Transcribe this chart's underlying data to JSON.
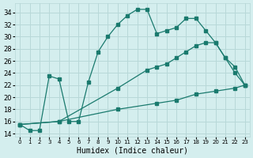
{
  "xlabel": "Humidex (Indice chaleur)",
  "bg_color": "#d4eeee",
  "grid_color": "#b8d8d8",
  "line_color": "#1a7a6e",
  "xlim": [
    -0.5,
    23.5
  ],
  "ylim": [
    13.5,
    35.5
  ],
  "yticks": [
    14,
    16,
    18,
    20,
    22,
    24,
    26,
    28,
    30,
    32,
    34
  ],
  "xticks": [
    0,
    1,
    2,
    3,
    4,
    5,
    6,
    7,
    8,
    9,
    10,
    11,
    12,
    13,
    14,
    15,
    16,
    17,
    18,
    19,
    20,
    21,
    22,
    23
  ],
  "line1_x": [
    0,
    1,
    2,
    3,
    4,
    5,
    6,
    7,
    8,
    9,
    10,
    11,
    12,
    13,
    14,
    15,
    16,
    17,
    18,
    19,
    20,
    21,
    22,
    23
  ],
  "line1_y": [
    15.5,
    14.5,
    14.5,
    23.5,
    23.0,
    16.0,
    16.0,
    22.5,
    27.5,
    30.0,
    32.0,
    33.5,
    34.5,
    34.5,
    30.5,
    31.0,
    31.5,
    33.0,
    33.0,
    31.0,
    29.0,
    26.5,
    24.0,
    22.0
  ],
  "line2_x": [
    0,
    4,
    10,
    13,
    14,
    15,
    16,
    17,
    18,
    19,
    20,
    21,
    22,
    23
  ],
  "line2_y": [
    15.5,
    16.0,
    21.5,
    24.5,
    25.0,
    25.5,
    26.5,
    27.5,
    28.5,
    29.0,
    29.0,
    26.5,
    25.0,
    22.0
  ],
  "line3_x": [
    0,
    4,
    10,
    14,
    16,
    18,
    20,
    22,
    23
  ],
  "line3_y": [
    15.5,
    16.0,
    18.0,
    19.0,
    19.5,
    20.5,
    21.0,
    21.5,
    22.0
  ]
}
